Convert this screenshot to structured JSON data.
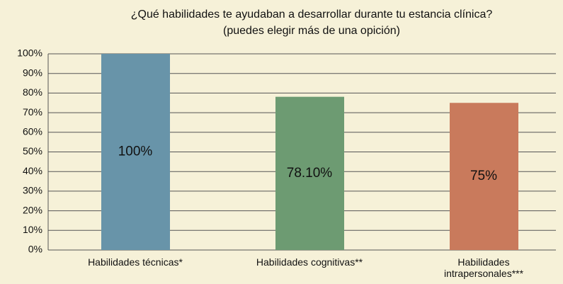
{
  "chart_data": {
    "type": "bar",
    "title": "¿Qué habilidades te ayudaban a desarrollar durante tu estancia clínica?",
    "subtitle": "(puedes elegir más de una opición)",
    "categories": [
      "Habilidades técnicas*",
      "Habilidades cognitivas**",
      "Habilidades intrapersonales***"
    ],
    "values": [
      100,
      78.1,
      75
    ],
    "value_labels": [
      "100%",
      "78.10%",
      "75%"
    ],
    "colors": [
      "#6894a9",
      "#6d9b72",
      "#c97a5c"
    ],
    "ylim": [
      0,
      100
    ],
    "yticks": [
      {
        "value": 0,
        "label": "0%"
      },
      {
        "value": 10,
        "label": "10%"
      },
      {
        "value": 20,
        "label": "20%"
      },
      {
        "value": 30,
        "label": "30%"
      },
      {
        "value": 40,
        "label": "40%"
      },
      {
        "value": 50,
        "label": "50%"
      },
      {
        "value": 60,
        "label": "60%"
      },
      {
        "value": 70,
        "label": "70%"
      },
      {
        "value": 80,
        "label": "80%"
      },
      {
        "value": 90,
        "label": "90%"
      },
      {
        "value": 100,
        "label": "100%"
      }
    ],
    "grid": true
  }
}
